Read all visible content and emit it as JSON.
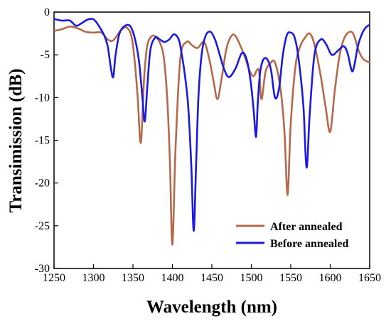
{
  "chart_data": {
    "type": "line",
    "xlabel": "Wavelength (nm)",
    "ylabel": "Transimission (dB)",
    "xlim": [
      1250,
      1650
    ],
    "ylim": [
      -30,
      0
    ],
    "xticks": [
      1250,
      1300,
      1350,
      1400,
      1450,
      1500,
      1550,
      1600,
      1650
    ],
    "yticks": [
      0,
      -5,
      -10,
      -15,
      -20,
      -25,
      -30
    ],
    "grid": false,
    "legend_position": "bottom-right",
    "series": [
      {
        "name": "After annealed",
        "color": "#b5694a",
        "x": [
          1250,
          1260,
          1270,
          1280,
          1290,
          1300,
          1310,
          1318,
          1325,
          1335,
          1342,
          1348,
          1352,
          1356,
          1360,
          1364,
          1368,
          1374,
          1380,
          1386,
          1390,
          1394,
          1397,
          1400,
          1404,
          1410,
          1418,
          1425,
          1432,
          1440,
          1446,
          1452,
          1457,
          1462,
          1468,
          1474,
          1480,
          1490,
          1498,
          1503,
          1507,
          1510,
          1513,
          1518,
          1524,
          1530,
          1537,
          1542,
          1546,
          1550,
          1556,
          1562,
          1568,
          1574,
          1580,
          1588,
          1594,
          1600,
          1606,
          1612,
          1618,
          1625,
          1630,
          1636,
          1642,
          1650
        ],
        "y": [
          -2.2,
          -2.0,
          -1.7,
          -1.9,
          -2.3,
          -2.4,
          -2.4,
          -3.2,
          -3.3,
          -2.1,
          -1.8,
          -2.8,
          -5.5,
          -10.0,
          -15.3,
          -8.0,
          -4.0,
          -2.8,
          -3.0,
          -4.0,
          -6.0,
          -11.0,
          -18.0,
          -27.2,
          -16.0,
          -5.5,
          -3.5,
          -3.9,
          -4.2,
          -3.5,
          -5.2,
          -8.0,
          -10.2,
          -8.0,
          -4.5,
          -2.9,
          -2.8,
          -4.8,
          -6.9,
          -7.5,
          -6.8,
          -7.0,
          -10.2,
          -7.0,
          -6.0,
          -5.9,
          -9.0,
          -14.0,
          -21.4,
          -13.0,
          -6.3,
          -4.0,
          -3.0,
          -2.5,
          -3.8,
          -7.5,
          -11.0,
          -14.0,
          -9.0,
          -5.0,
          -3.0,
          -2.3,
          -2.7,
          -4.5,
          -5.5,
          -5.9
        ]
      },
      {
        "name": "Before annealed",
        "color": "#1a1ae0",
        "x": [
          1250,
          1260,
          1270,
          1278,
          1285,
          1292,
          1298,
          1302,
          1308,
          1314,
          1318,
          1322,
          1325,
          1328,
          1333,
          1340,
          1347,
          1353,
          1358,
          1362,
          1365,
          1368,
          1372,
          1378,
          1384,
          1390,
          1396,
          1402,
          1408,
          1412,
          1416,
          1420,
          1424,
          1427,
          1430,
          1433,
          1437,
          1442,
          1448,
          1454,
          1460,
          1466,
          1472,
          1480,
          1488,
          1494,
          1499,
          1503,
          1506,
          1508,
          1511,
          1515,
          1520,
          1525,
          1530,
          1535,
          1540,
          1545,
          1550,
          1555,
          1560,
          1566,
          1570,
          1574,
          1580,
          1588,
          1595,
          1602,
          1610,
          1617,
          1622,
          1627,
          1630,
          1635,
          1640,
          1645,
          1650
        ],
        "y": [
          -0.8,
          -1.0,
          -1.0,
          -1.6,
          -1.3,
          -0.9,
          -0.8,
          -1.0,
          -1.8,
          -2.8,
          -4.0,
          -6.5,
          -7.6,
          -5.0,
          -2.5,
          -1.6,
          -1.7,
          -3.3,
          -6.0,
          -10.0,
          -12.8,
          -9.0,
          -4.5,
          -3.0,
          -3.2,
          -3.5,
          -3.2,
          -2.6,
          -3.2,
          -5.0,
          -7.5,
          -11.0,
          -18.0,
          -25.6,
          -18.0,
          -10.0,
          -5.0,
          -2.8,
          -2.3,
          -3.2,
          -5.0,
          -6.8,
          -7.6,
          -6.6,
          -4.8,
          -5.5,
          -8.0,
          -11.5,
          -14.6,
          -11.0,
          -7.2,
          -5.6,
          -5.5,
          -6.8,
          -10.0,
          -9.0,
          -5.0,
          -2.7,
          -2.4,
          -3.0,
          -5.5,
          -11.0,
          -18.2,
          -12.0,
          -5.0,
          -3.2,
          -3.8,
          -5.0,
          -4.5,
          -4.0,
          -4.8,
          -6.8,
          -6.5,
          -4.0,
          -2.6,
          -1.8,
          -1.5
        ]
      }
    ]
  }
}
